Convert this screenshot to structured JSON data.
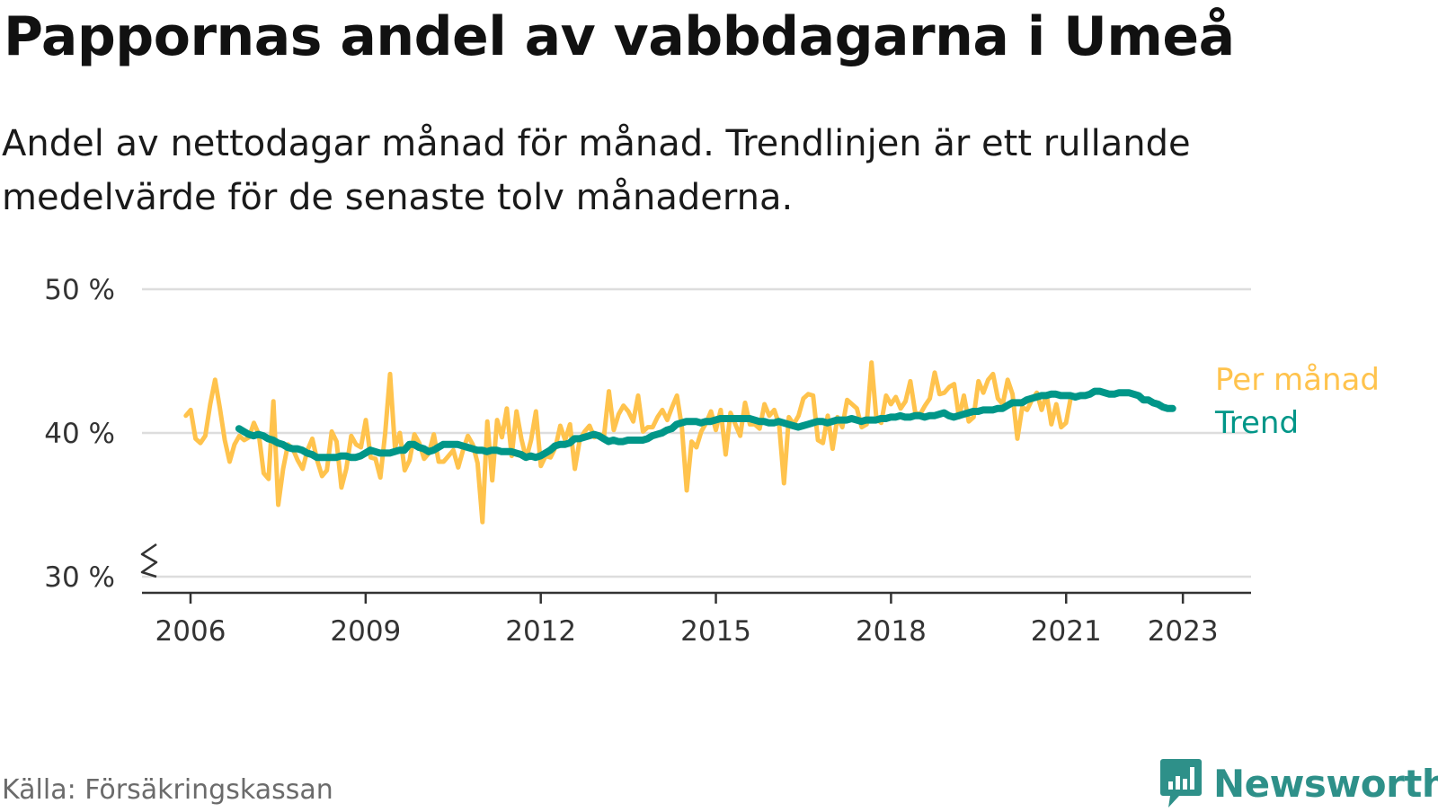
{
  "header": {
    "title": "Pappornas andel av vabbdagarna i Umeå",
    "subtitle": "Andel av nettodagar månad för månad. Trendlinjen är ett rullande medelvärde för de senaste tolv månaderna."
  },
  "footer": {
    "source": "Källa: Försäkringskassan",
    "brand": "Newsworthy"
  },
  "colors": {
    "monthly": "#ffc34d",
    "trend": "#009688",
    "grid": "#dddddd",
    "axis": "#333333",
    "brand": "#2e9089"
  },
  "chart_data": {
    "type": "line",
    "x_unit": "year",
    "xlim": [
      2006,
      2023.5
    ],
    "ylim": [
      30,
      50
    ],
    "y_axis_broken": true,
    "grid": "horizontal",
    "legend_placement": "right-end-labels",
    "y_ticks": [
      30,
      40,
      50
    ],
    "y_tick_labels": [
      "30 %",
      "40 %",
      "50 %"
    ],
    "x_ticks": [
      2006,
      2009,
      2012,
      2015,
      2018,
      2021,
      2023
    ],
    "x_tick_labels": [
      "2006",
      "2009",
      "2012",
      "2015",
      "2018",
      "2021",
      "2023"
    ],
    "series": [
      {
        "name": "Per månad",
        "color": "#ffc34d",
        "x_start": 2005.92,
        "step": 0.0833,
        "values": [
          41.2,
          41.6,
          39.6,
          39.3,
          39.8,
          42.0,
          43.7,
          41.7,
          39.5,
          38.0,
          39.2,
          39.8,
          39.5,
          39.7,
          40.7,
          39.9,
          37.2,
          36.8,
          42.2,
          35.0,
          37.5,
          39.2,
          38.9,
          38.1,
          37.5,
          38.8,
          39.6,
          38.1,
          37.0,
          37.4,
          40.1,
          39.4,
          36.2,
          37.5,
          39.8,
          39.2,
          39.0,
          40.9,
          38.3,
          38.2,
          36.9,
          40.0,
          44.1,
          39.0,
          40.0,
          37.4,
          38.1,
          39.9,
          39.3,
          38.2,
          38.6,
          39.9,
          38.0,
          38.0,
          38.4,
          38.8,
          37.6,
          38.8,
          39.8,
          39.2,
          37.9,
          33.8,
          40.8,
          36.7,
          40.9,
          39.7,
          41.7,
          38.4,
          41.5,
          39.6,
          38.2,
          39.5,
          41.5,
          37.7,
          38.4,
          38.3,
          39.0,
          40.5,
          39.5,
          40.6,
          37.5,
          39.5,
          40.1,
          40.5,
          39.7,
          39.9,
          39.8,
          42.9,
          40.2,
          41.3,
          41.9,
          41.5,
          40.8,
          42.6,
          40.1,
          40.4,
          40.4,
          41.1,
          41.6,
          40.9,
          41.8,
          42.6,
          40.4,
          36.0,
          39.4,
          39.0,
          40.1,
          40.7,
          41.5,
          40.2,
          41.6,
          38.5,
          41.4,
          40.6,
          39.8,
          42.1,
          40.6,
          40.6,
          40.3,
          42.0,
          41.2,
          41.6,
          40.6,
          36.5,
          41.1,
          40.6,
          41.2,
          42.4,
          42.7,
          42.6,
          39.5,
          39.3,
          41.2,
          38.9,
          41.1,
          40.4,
          42.3,
          42.0,
          41.7,
          40.4,
          40.6,
          44.9,
          41.0,
          40.7,
          42.6,
          42.0,
          42.5,
          41.7,
          42.2,
          43.6,
          41.4,
          41.3,
          41.9,
          42.4,
          44.2,
          42.7,
          42.8,
          43.2,
          43.4,
          41.1,
          42.6,
          40.8,
          41.1,
          43.6,
          42.8,
          43.7,
          44.1,
          42.4,
          42.0,
          43.7,
          42.7,
          39.6,
          41.8,
          41.6,
          42.3,
          42.8,
          41.6,
          42.7,
          40.6,
          42.0,
          40.4,
          40.7,
          42.5
        ]
      },
      {
        "name": "Trend",
        "color": "#009688",
        "x_start": 2006.83,
        "step": 0.0833,
        "values": [
          40.3,
          40.1,
          39.9,
          39.8,
          39.9,
          39.8,
          39.6,
          39.5,
          39.3,
          39.2,
          39.0,
          38.9,
          38.9,
          38.8,
          38.6,
          38.5,
          38.3,
          38.3,
          38.3,
          38.3,
          38.3,
          38.4,
          38.4,
          38.3,
          38.3,
          38.4,
          38.6,
          38.8,
          38.7,
          38.6,
          38.6,
          38.6,
          38.7,
          38.8,
          38.8,
          39.2,
          39.2,
          39.0,
          38.9,
          38.7,
          38.8,
          39.0,
          39.2,
          39.2,
          39.2,
          39.2,
          39.1,
          39.0,
          38.9,
          38.8,
          38.8,
          38.7,
          38.8,
          38.8,
          38.7,
          38.7,
          38.7,
          38.6,
          38.5,
          38.3,
          38.4,
          38.3,
          38.4,
          38.6,
          38.8,
          39.1,
          39.2,
          39.2,
          39.3,
          39.6,
          39.6,
          39.7,
          39.8,
          39.9,
          39.8,
          39.6,
          39.4,
          39.5,
          39.4,
          39.4,
          39.5,
          39.5,
          39.5,
          39.5,
          39.6,
          39.8,
          39.9,
          40.0,
          40.2,
          40.3,
          40.6,
          40.7,
          40.8,
          40.8,
          40.8,
          40.7,
          40.8,
          40.8,
          40.9,
          41.0,
          41.0,
          41.0,
          41.0,
          41.0,
          41.0,
          41.0,
          40.9,
          40.8,
          40.8,
          40.7,
          40.7,
          40.8,
          40.7,
          40.6,
          40.5,
          40.4,
          40.5,
          40.6,
          40.7,
          40.8,
          40.8,
          40.7,
          40.8,
          40.9,
          40.9,
          40.9,
          41.0,
          40.9,
          40.8,
          40.9,
          40.9,
          40.9,
          41.0,
          41.0,
          41.1,
          41.1,
          41.2,
          41.1,
          41.1,
          41.2,
          41.2,
          41.1,
          41.2,
          41.2,
          41.3,
          41.4,
          41.2,
          41.1,
          41.2,
          41.3,
          41.4,
          41.5,
          41.5,
          41.6,
          41.6,
          41.6,
          41.7,
          41.7,
          41.9,
          42.1,
          42.1,
          42.1,
          42.3,
          42.4,
          42.5,
          42.6,
          42.6,
          42.7,
          42.7,
          42.6,
          42.6,
          42.6,
          42.5,
          42.6,
          42.6,
          42.7,
          42.9,
          42.9,
          42.8,
          42.7,
          42.7,
          42.8,
          42.8,
          42.8,
          42.7,
          42.6,
          42.3,
          42.3,
          42.1,
          42.0,
          41.8,
          41.7,
          41.7
        ]
      }
    ]
  }
}
